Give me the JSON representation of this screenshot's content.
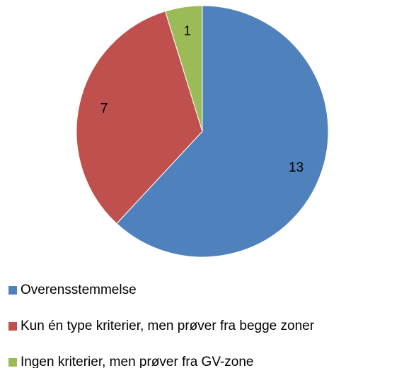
{
  "chart_data": {
    "type": "pie",
    "categories": [
      "Overensstemmelse",
      "Kun én type kriterier, men prøver fra begge zoner",
      "Ingen kriterier, men prøver fra GV-zone"
    ],
    "values": [
      13,
      7,
      1
    ],
    "colors": [
      "#4f81bd",
      "#c0504d",
      "#9bbb59"
    ]
  }
}
